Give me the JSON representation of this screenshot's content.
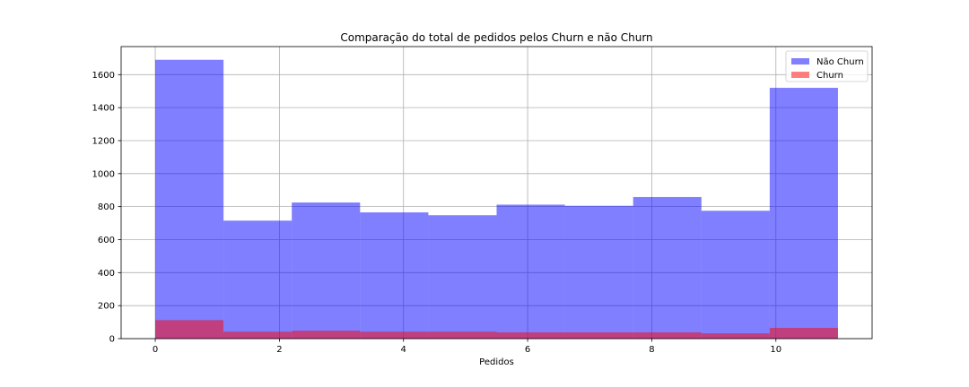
{
  "chart_data": {
    "type": "bar",
    "title": "Comparação do total de pedidos pelos Churn e não Churn",
    "xlabel": "Pedidos",
    "ylabel": "",
    "xlim": [
      -0.55,
      11.55
    ],
    "ylim": [
      0,
      1770
    ],
    "xticks": [
      0,
      2,
      4,
      6,
      8,
      10
    ],
    "yticks": [
      0,
      200,
      400,
      600,
      800,
      1000,
      1200,
      1400,
      1600
    ],
    "bin_edges": [
      0,
      1.1,
      2.2,
      3.3,
      4.4,
      5.5,
      6.6,
      7.7,
      8.8,
      9.9,
      11
    ],
    "series": [
      {
        "name": "Não Churn",
        "color": "#0000ff",
        "alpha": 0.5,
        "values": [
          1690,
          715,
          825,
          765,
          748,
          812,
          805,
          858,
          775,
          1520
        ]
      },
      {
        "name": "Churn",
        "color": "#ff0000",
        "alpha": 0.5,
        "values": [
          112,
          42,
          48,
          42,
          42,
          38,
          38,
          38,
          32,
          65
        ]
      }
    ],
    "grid": true,
    "legend_position": "top-right"
  }
}
